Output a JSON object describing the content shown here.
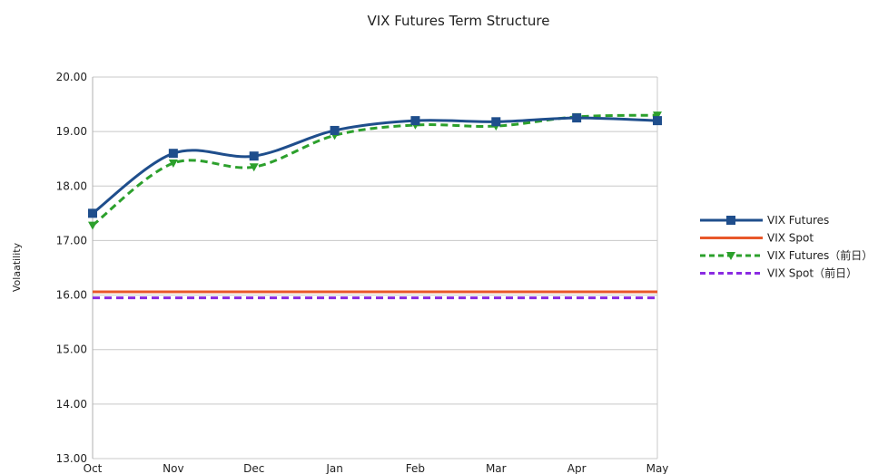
{
  "chart_data": {
    "type": "line",
    "title": "VIX Futures Term Structure",
    "xlabel": "",
    "ylabel": "Volaatility",
    "categories": [
      "Oct",
      "Nov",
      "Dec",
      "Jan",
      "Feb",
      "Mar",
      "Apr",
      "May"
    ],
    "ylim": [
      13,
      20
    ],
    "yticks": [
      "13.00",
      "14.00",
      "15.00",
      "16.00",
      "17.00",
      "18.00",
      "19.00",
      "20.00"
    ],
    "grid": "horizontal",
    "legend_position": "right",
    "series": [
      {
        "name": "VIX Futures",
        "color": "#1f4e8c",
        "style": "solid",
        "marker": "square",
        "smooth": true,
        "values": [
          17.5,
          18.6,
          18.55,
          19.02,
          19.2,
          19.18,
          19.25,
          19.2
        ]
      },
      {
        "name": "VIX Spot",
        "color": "#e8572a",
        "style": "solid",
        "marker": "none",
        "values": [
          16.06,
          16.06,
          16.06,
          16.06,
          16.06,
          16.06,
          16.06,
          16.06
        ]
      },
      {
        "name": "VIX Futures（前日）",
        "color": "#2ca02c",
        "style": "dashed",
        "marker": "triangle-down",
        "smooth": true,
        "values": [
          17.28,
          18.42,
          18.35,
          18.93,
          19.12,
          19.1,
          19.27,
          19.3
        ]
      },
      {
        "name": "VIX Spot（前日）",
        "color": "#8a2be2",
        "style": "dashed",
        "marker": "none",
        "values": [
          15.95,
          15.95,
          15.95,
          15.95,
          15.95,
          15.95,
          15.95,
          15.95
        ]
      }
    ]
  }
}
